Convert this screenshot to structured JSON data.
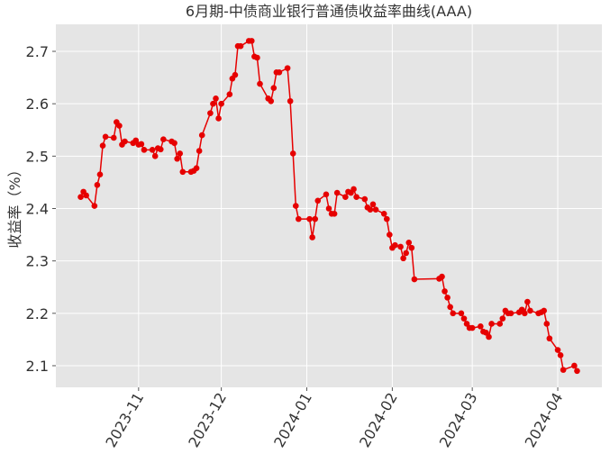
{
  "chart_data": {
    "type": "line",
    "title": "6月期-中债商业银行普通债收益率曲线(AAA)",
    "y_label": "收益率（%）",
    "x": [
      "2023-10-11",
      "2023-10-12",
      "2023-10-13",
      "2023-10-16",
      "2023-10-17",
      "2023-10-18",
      "2023-10-19",
      "2023-10-20",
      "2023-10-23",
      "2023-10-24",
      "2023-10-25",
      "2023-10-26",
      "2023-10-27",
      "2023-10-30",
      "2023-10-31",
      "2023-11-01",
      "2023-11-02",
      "2023-11-03",
      "2023-11-06",
      "2023-11-07",
      "2023-11-08",
      "2023-11-09",
      "2023-11-10",
      "2023-11-13",
      "2023-11-14",
      "2023-11-15",
      "2023-11-16",
      "2023-11-17",
      "2023-11-20",
      "2023-11-21",
      "2023-11-22",
      "2023-11-23",
      "2023-11-24",
      "2023-11-27",
      "2023-11-28",
      "2023-11-29",
      "2023-11-30",
      "2023-12-01",
      "2023-12-04",
      "2023-12-05",
      "2023-12-06",
      "2023-12-07",
      "2023-12-08",
      "2023-12-11",
      "2023-12-12",
      "2023-12-13",
      "2023-12-14",
      "2023-12-15",
      "2023-12-18",
      "2023-12-19",
      "2023-12-20",
      "2023-12-21",
      "2023-12-22",
      "2023-12-25",
      "2023-12-26",
      "2023-12-27",
      "2023-12-28",
      "2023-12-29",
      "2024-01-02",
      "2024-01-03",
      "2024-01-04",
      "2024-01-05",
      "2024-01-08",
      "2024-01-09",
      "2024-01-10",
      "2024-01-11",
      "2024-01-12",
      "2024-01-15",
      "2024-01-16",
      "2024-01-17",
      "2024-01-18",
      "2024-01-19",
      "2024-01-22",
      "2024-01-23",
      "2024-01-24",
      "2024-01-25",
      "2024-01-26",
      "2024-01-29",
      "2024-01-30",
      "2024-01-31",
      "2024-02-01",
      "2024-02-02",
      "2024-02-04",
      "2024-02-05",
      "2024-02-06",
      "2024-02-07",
      "2024-02-08",
      "2024-02-09",
      "2024-02-18",
      "2024-02-19",
      "2024-02-20",
      "2024-02-21",
      "2024-02-22",
      "2024-02-23",
      "2024-02-26",
      "2024-02-27",
      "2024-02-28",
      "2024-02-29",
      "2024-03-01",
      "2024-03-04",
      "2024-03-05",
      "2024-03-06",
      "2024-03-07",
      "2024-03-08",
      "2024-03-11",
      "2024-03-12",
      "2024-03-13",
      "2024-03-14",
      "2024-03-15",
      "2024-03-18",
      "2024-03-19",
      "2024-03-20",
      "2024-03-21",
      "2024-03-22",
      "2024-03-25",
      "2024-03-26",
      "2024-03-27",
      "2024-03-28",
      "2024-03-29",
      "2024-04-01",
      "2024-04-02",
      "2024-04-03",
      "2024-04-07",
      "2024-04-08"
    ],
    "series": [
      {
        "name": "收益率",
        "color": "#e60000",
        "values": [
          2.422,
          2.432,
          2.425,
          2.405,
          2.445,
          2.465,
          2.52,
          2.537,
          2.535,
          2.565,
          2.558,
          2.522,
          2.528,
          2.525,
          2.53,
          2.522,
          2.523,
          2.512,
          2.512,
          2.5,
          2.515,
          2.513,
          2.532,
          2.528,
          2.525,
          2.495,
          2.505,
          2.47,
          2.47,
          2.472,
          2.477,
          2.51,
          2.54,
          2.582,
          2.6,
          2.61,
          2.572,
          2.6,
          2.618,
          2.648,
          2.655,
          2.71,
          2.71,
          2.72,
          2.72,
          2.69,
          2.688,
          2.638,
          2.61,
          2.605,
          2.63,
          2.66,
          2.66,
          2.668,
          2.605,
          2.505,
          2.405,
          2.38,
          2.38,
          2.345,
          2.38,
          2.415,
          2.427,
          2.4,
          2.39,
          2.39,
          2.43,
          2.422,
          2.432,
          2.43,
          2.437,
          2.422,
          2.418,
          2.402,
          2.398,
          2.408,
          2.398,
          2.39,
          2.38,
          2.35,
          2.325,
          2.33,
          2.327,
          2.305,
          2.315,
          2.335,
          2.325,
          2.265,
          2.266,
          2.27,
          2.242,
          2.23,
          2.212,
          2.2,
          2.2,
          2.19,
          2.18,
          2.172,
          2.172,
          2.175,
          2.165,
          2.163,
          2.155,
          2.18,
          2.18,
          2.19,
          2.205,
          2.2,
          2.2,
          2.202,
          2.207,
          2.2,
          2.222,
          2.205,
          2.2,
          2.202,
          2.205,
          2.18,
          2.152,
          2.13,
          2.12,
          2.092,
          2.1,
          2.09
        ]
      }
    ],
    "xlim": [
      "2023-10-02",
      "2024-04-17"
    ],
    "xticks": [
      {
        "value": "2023-11-01",
        "label": "2023-11"
      },
      {
        "value": "2023-12-01",
        "label": "2023-12"
      },
      {
        "value": "2024-01-01",
        "label": "2024-01"
      },
      {
        "value": "2024-02-01",
        "label": "2024-02"
      },
      {
        "value": "2024-03-01",
        "label": "2024-03"
      },
      {
        "value": "2024-04-01",
        "label": "2024-04"
      }
    ],
    "ylim": [
      2.0587,
      2.7516
    ],
    "yticks": [
      2.1,
      2.2,
      2.3,
      2.4,
      2.5,
      2.6,
      2.7
    ],
    "grid": true
  }
}
